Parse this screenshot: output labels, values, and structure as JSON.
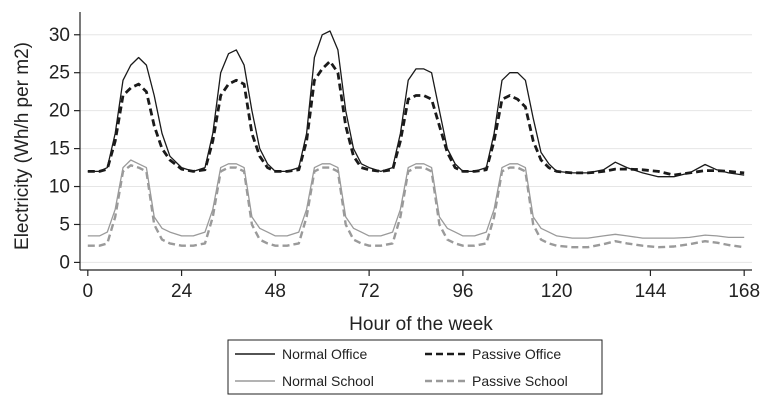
{
  "chart_data": {
    "type": "line",
    "title": "",
    "xlabel": "Hour of the week",
    "ylabel": "Electricity (Wh/h per m2)",
    "xlim": [
      -2,
      170
    ],
    "ylim": [
      -1,
      33
    ],
    "xticks": [
      0,
      24,
      48,
      72,
      96,
      120,
      144,
      168
    ],
    "yticks": [
      0,
      5,
      10,
      15,
      20,
      25,
      30
    ],
    "grid": "horizontal",
    "legend_position": "bottom",
    "series": [
      {
        "name": "Normal Office",
        "color": "#1a1a1a",
        "style": "solid",
        "x": [
          0,
          3,
          5,
          7,
          9,
          11,
          13,
          15,
          17,
          19,
          21,
          24,
          27,
          30,
          32,
          34,
          36,
          38,
          40,
          42,
          44,
          46,
          48,
          51,
          54,
          56,
          58,
          60,
          62,
          64,
          66,
          68,
          70,
          72,
          75,
          78,
          80,
          82,
          84,
          86,
          88,
          90,
          92,
          94,
          96,
          99,
          102,
          104,
          106,
          108,
          110,
          112,
          114,
          116,
          118,
          120,
          124,
          128,
          132,
          135,
          138,
          142,
          146,
          150,
          154,
          158,
          161,
          164,
          168
        ],
        "y": [
          12,
          12,
          12.5,
          17,
          24,
          26,
          27,
          26,
          22,
          17,
          14,
          12.5,
          12,
          12.5,
          17,
          25,
          27.5,
          28,
          26,
          20,
          15,
          13,
          12,
          12,
          12.5,
          17,
          27,
          30,
          30.5,
          28,
          20,
          15,
          13,
          12.5,
          12,
          12.5,
          17,
          24,
          25.5,
          25.5,
          25,
          20,
          15,
          13,
          12,
          12,
          12.5,
          17,
          24,
          25,
          25,
          24,
          19,
          14.5,
          13,
          12,
          11.8,
          11.8,
          12.2,
          13.2,
          12.5,
          11.8,
          11.3,
          11.3,
          11.8,
          12.9,
          12.2,
          11.8,
          11.5
        ]
      },
      {
        "name": "Passive Office",
        "color": "#1a1a1a",
        "style": "dashed",
        "x": [
          0,
          3,
          5,
          7,
          9,
          11,
          13,
          15,
          17,
          19,
          21,
          24,
          27,
          30,
          32,
          34,
          36,
          38,
          40,
          42,
          44,
          46,
          48,
          51,
          54,
          56,
          58,
          60,
          62,
          64,
          66,
          68,
          70,
          72,
          75,
          78,
          80,
          82,
          84,
          86,
          88,
          90,
          92,
          94,
          96,
          99,
          102,
          104,
          106,
          108,
          110,
          112,
          114,
          116,
          118,
          120,
          124,
          128,
          132,
          135,
          138,
          142,
          146,
          150,
          154,
          158,
          161,
          164,
          168
        ],
        "y": [
          12,
          12,
          12.3,
          16,
          22,
          23,
          23.5,
          22.5,
          18,
          15,
          13.5,
          12.3,
          12,
          12.2,
          16,
          22,
          23.5,
          24,
          23.5,
          17,
          14,
          12.5,
          12,
          12,
          12.2,
          16,
          24,
          25.5,
          26.5,
          25,
          18,
          14,
          12.5,
          12.2,
          12,
          12.2,
          16,
          21.5,
          22,
          22,
          21.5,
          18,
          14.5,
          12.5,
          12,
          12,
          12.2,
          16,
          21.5,
          22,
          21.5,
          20.5,
          16,
          13.5,
          12.5,
          12,
          11.8,
          11.8,
          12,
          12.3,
          12.3,
          12.2,
          12,
          11.5,
          11.8,
          12.1,
          12.1,
          12,
          11.8
        ]
      },
      {
        "name": "Normal School",
        "color": "#9a9a9a",
        "style": "solid",
        "x": [
          0,
          3,
          5,
          7,
          9,
          11,
          13,
          15,
          17,
          19,
          21,
          24,
          27,
          30,
          32,
          34,
          36,
          38,
          40,
          42,
          44,
          46,
          48,
          51,
          54,
          56,
          58,
          60,
          62,
          64,
          66,
          68,
          70,
          72,
          75,
          78,
          80,
          82,
          84,
          86,
          88,
          90,
          92,
          94,
          96,
          99,
          102,
          104,
          106,
          108,
          110,
          112,
          114,
          116,
          118,
          120,
          124,
          128,
          132,
          135,
          138,
          142,
          146,
          150,
          154,
          158,
          161,
          164,
          168
        ],
        "y": [
          3.5,
          3.5,
          4,
          7,
          12.5,
          13.5,
          13,
          12.5,
          6,
          4.5,
          4,
          3.5,
          3.5,
          4,
          7,
          12.5,
          13,
          13,
          12.5,
          6,
          4.5,
          4,
          3.5,
          3.5,
          4,
          7,
          12.5,
          13,
          13,
          12.5,
          6,
          4.5,
          4,
          3.5,
          3.5,
          4,
          7,
          12.5,
          13,
          13,
          12.5,
          6,
          4.5,
          4,
          3.5,
          3.5,
          4,
          7,
          12.5,
          13,
          13,
          12.5,
          6,
          4.5,
          4,
          3.5,
          3.2,
          3.2,
          3.5,
          3.7,
          3.5,
          3.2,
          3.2,
          3.2,
          3.3,
          3.6,
          3.5,
          3.3,
          3.3
        ]
      },
      {
        "name": "Passive School",
        "color": "#9a9a9a",
        "style": "dashed",
        "x": [
          0,
          3,
          5,
          7,
          9,
          11,
          13,
          15,
          17,
          19,
          21,
          24,
          27,
          30,
          32,
          34,
          36,
          38,
          40,
          42,
          44,
          46,
          48,
          51,
          54,
          56,
          58,
          60,
          62,
          64,
          66,
          68,
          70,
          72,
          75,
          78,
          80,
          82,
          84,
          86,
          88,
          90,
          92,
          94,
          96,
          99,
          102,
          104,
          106,
          108,
          110,
          112,
          114,
          116,
          118,
          120,
          124,
          128,
          132,
          135,
          138,
          142,
          146,
          150,
          154,
          158,
          161,
          164,
          168
        ],
        "y": [
          2.2,
          2.2,
          2.5,
          6,
          12,
          12.8,
          12.5,
          12,
          5,
          3,
          2.5,
          2.2,
          2.2,
          2.5,
          6,
          12,
          12.5,
          12.5,
          12,
          5,
          3,
          2.5,
          2.2,
          2.2,
          2.5,
          6,
          12,
          12.5,
          12.5,
          12,
          5,
          3,
          2.5,
          2.2,
          2.2,
          2.5,
          6,
          12,
          12.5,
          12.5,
          12,
          5,
          3,
          2.5,
          2.2,
          2.2,
          2.5,
          6,
          12,
          12.5,
          12.5,
          12,
          5,
          3,
          2.5,
          2.2,
          2,
          2,
          2.4,
          2.8,
          2.5,
          2.2,
          2,
          2.1,
          2.4,
          2.8,
          2.6,
          2.3,
          2
        ]
      }
    ]
  }
}
